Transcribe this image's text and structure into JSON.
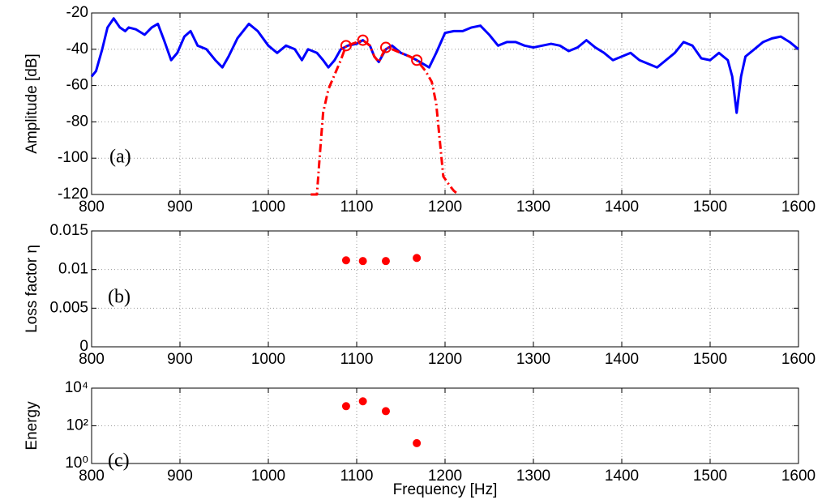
{
  "chart_data": [
    {
      "type": "line",
      "ylabel": "Amplitude [dB]",
      "annotation": "(a)",
      "xlim": [
        800,
        1600
      ],
      "xticks": [
        800,
        900,
        1000,
        1100,
        1200,
        1300,
        1400,
        1500,
        1600
      ],
      "ylim": [
        -120,
        -20
      ],
      "yticks": [
        -120,
        -100,
        -80,
        -60,
        -40,
        -20
      ],
      "grid": true,
      "series": [
        {
          "color": "#0000ff",
          "style": "solid",
          "x": [
            800,
            805,
            812,
            818,
            825,
            832,
            838,
            842,
            850,
            860,
            868,
            875,
            882,
            890,
            897,
            905,
            912,
            920,
            930,
            940,
            948,
            955,
            965,
            978,
            988,
            1000,
            1010,
            1020,
            1030,
            1038,
            1045,
            1055,
            1062,
            1068,
            1075,
            1082,
            1090,
            1100,
            1107,
            1115,
            1120,
            1125,
            1133,
            1140,
            1150,
            1160,
            1168,
            1175,
            1182,
            1190,
            1200,
            1210,
            1220,
            1230,
            1240,
            1250,
            1260,
            1270,
            1280,
            1290,
            1300,
            1310,
            1320,
            1330,
            1340,
            1350,
            1360,
            1370,
            1380,
            1390,
            1400,
            1410,
            1420,
            1430,
            1440,
            1450,
            1460,
            1470,
            1480,
            1490,
            1500,
            1510,
            1520,
            1525,
            1530,
            1535,
            1540,
            1550,
            1560,
            1570,
            1580,
            1590,
            1600
          ],
          "values": [
            -55,
            -52,
            -40,
            -28,
            -23,
            -28,
            -30,
            -28,
            -29,
            -32,
            -28,
            -26,
            -35,
            -46,
            -42,
            -33,
            -30,
            -38,
            -40,
            -46,
            -50,
            -44,
            -34,
            -26,
            -30,
            -38,
            -42,
            -38,
            -40,
            -46,
            -40,
            -42,
            -46,
            -50,
            -46,
            -40,
            -38,
            -37,
            -35,
            -38,
            -44,
            -47,
            -40,
            -38,
            -42,
            -44,
            -46,
            -48,
            -50,
            -42,
            -31,
            -30,
            -30,
            -28,
            -27,
            -32,
            -38,
            -36,
            -36,
            -38,
            -39,
            -38,
            -37,
            -38,
            -41,
            -39,
            -35,
            -39,
            -42,
            -46,
            -44,
            -42,
            -46,
            -48,
            -50,
            -46,
            -42,
            -36,
            -38,
            -45,
            -46,
            -42,
            -46,
            -55,
            -75,
            -55,
            -44,
            -40,
            -36,
            -34,
            -33,
            -36,
            -40
          ]
        },
        {
          "color": "#ff0000",
          "style": "dashdot",
          "x": [
            1048,
            1055,
            1058,
            1062,
            1068,
            1075,
            1082,
            1088,
            1095,
            1107,
            1115,
            1120,
            1125,
            1133,
            1140,
            1150,
            1160,
            1168,
            1178,
            1185,
            1190,
            1195,
            1198,
            1205,
            1210,
            1215
          ],
          "values": [
            -120,
            -120,
            -100,
            -75,
            -62,
            -54,
            -46,
            -38,
            -37,
            -35,
            -38,
            -44,
            -47,
            -39,
            -40,
            -42,
            -44,
            -46,
            -52,
            -58,
            -70,
            -95,
            -110,
            -115,
            -118,
            -120
          ]
        },
        {
          "color": "#ff0000",
          "style": "circle",
          "x": [
            1088,
            1107,
            1133,
            1168
          ],
          "values": [
            -38,
            -35,
            -39,
            -46
          ]
        }
      ]
    },
    {
      "type": "scatter",
      "ylabel": "Loss factor η",
      "annotation": "(b)",
      "xlim": [
        800,
        1600
      ],
      "xticks": [
        800,
        900,
        1000,
        1100,
        1200,
        1300,
        1400,
        1500,
        1600
      ],
      "ylim": [
        0,
        0.015
      ],
      "yticks": [
        0,
        0.005,
        0.01,
        0.015
      ],
      "grid": true,
      "series": [
        {
          "color": "#ff0000",
          "x": [
            1088,
            1107,
            1133,
            1168
          ],
          "values": [
            0.0112,
            0.0111,
            0.0111,
            0.0115
          ]
        }
      ]
    },
    {
      "type": "scatter",
      "ylabel": "Energy",
      "annotation": "(c)",
      "xlabel": "Frequency [Hz]",
      "yscale": "log",
      "xlim": [
        800,
        1600
      ],
      "xticks": [
        800,
        900,
        1000,
        1100,
        1200,
        1300,
        1400,
        1500,
        1600
      ],
      "ylim": [
        1,
        10000
      ],
      "yticks": [
        {
          "value": 1,
          "label": "10⁰"
        },
        {
          "value": 100,
          "label": "10²"
        },
        {
          "value": 10000,
          "label": "10⁴"
        }
      ],
      "grid": true,
      "series": [
        {
          "color": "#ff0000",
          "x": [
            1088,
            1107,
            1133,
            1168
          ],
          "values": [
            1100,
            2000,
            600,
            12
          ]
        }
      ]
    }
  ]
}
